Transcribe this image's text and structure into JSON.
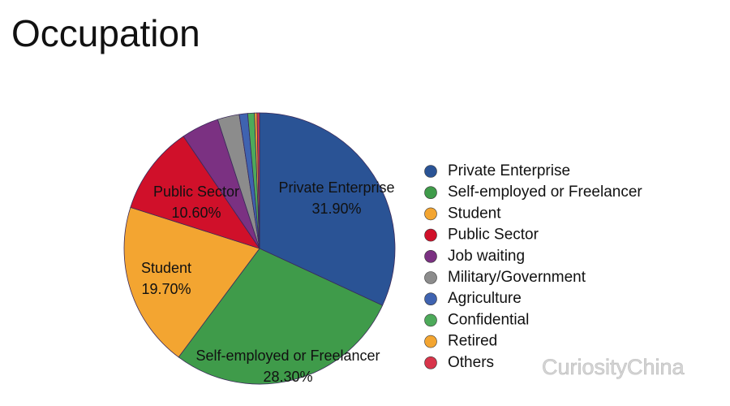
{
  "chart_data": {
    "type": "pie",
    "title": "Occupation",
    "categories": [
      "Private Enterprise",
      "Self-employed or Freelancer",
      "Student",
      "Public Sector",
      "Job waiting",
      "Military/Government",
      "Agriculture",
      "Confidential",
      "Retired",
      "Others"
    ],
    "values": [
      31.9,
      28.3,
      19.7,
      10.6,
      4.5,
      2.6,
      1.0,
      0.8,
      0.3,
      0.3
    ],
    "value_labels": [
      "31.90%",
      "28.30%",
      "19.70%",
      "10.60%",
      null,
      null,
      null,
      null,
      null,
      null
    ],
    "colors": [
      "#2a5395",
      "#3f9b4a",
      "#f3a531",
      "#d0102a",
      "#7b3182",
      "#8c8c8c",
      "#3f63b0",
      "#4daa5a",
      "#f3a531",
      "#d8344a"
    ],
    "legend": "right",
    "watermark": "CuriosityChina"
  }
}
